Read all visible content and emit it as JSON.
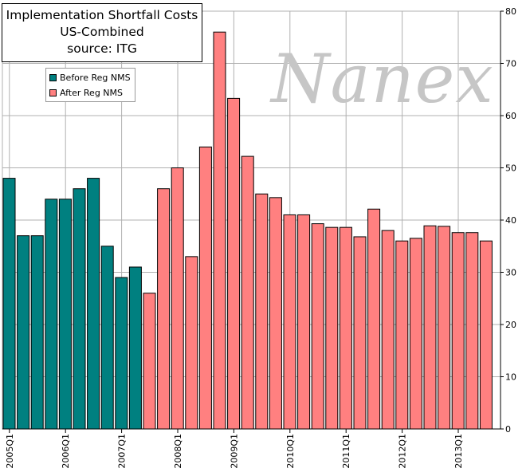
{
  "chart_data": {
    "type": "bar",
    "title": [
      "Implementation Shortfall Costs",
      "US-Combined",
      "source: ITG"
    ],
    "watermark": "Nanex",
    "xlabel": "",
    "ylabel": "",
    "ylim": [
      0,
      80
    ],
    "yticks": [
      0,
      10,
      20,
      30,
      40,
      50,
      60,
      70,
      80
    ],
    "xtick_labels": [
      "2005Q1",
      "2006Q1",
      "2007Q1",
      "2008Q1",
      "2009Q1",
      "2010Q1",
      "2011Q1",
      "2012Q1",
      "2013Q1"
    ],
    "legend": {
      "position": "top-left"
    },
    "grid": true,
    "series": [
      {
        "name": "Before Reg NMS",
        "color": "#008080",
        "x": [
          "2005Q1",
          "2005Q2",
          "2005Q3",
          "2005Q4",
          "2006Q1",
          "2006Q2",
          "2006Q3",
          "2006Q4",
          "2007Q1",
          "2007Q2"
        ],
        "values": [
          48,
          37,
          37,
          44,
          44,
          46,
          48,
          35,
          29,
          31
        ]
      },
      {
        "name": "After Reg NMS",
        "color": "#ff8080",
        "x": [
          "2007Q3",
          "2007Q4",
          "2008Q1",
          "2008Q2",
          "2008Q3",
          "2008Q4",
          "2009Q1",
          "2009Q2",
          "2009Q3",
          "2009Q4",
          "2010Q1",
          "2010Q2",
          "2010Q3",
          "2010Q4",
          "2011Q1",
          "2011Q2",
          "2011Q3",
          "2011Q4",
          "2012Q1",
          "2012Q2",
          "2012Q3",
          "2012Q4",
          "2013Q1",
          "2013Q2",
          "2013Q3"
        ],
        "values": [
          26,
          46,
          50,
          33,
          54,
          76,
          63.3,
          52.2,
          45,
          44.3,
          41,
          41,
          39.3,
          38.6,
          38.6,
          36.8,
          42.1,
          38,
          36,
          36.5,
          38.9,
          38.8,
          37.6,
          37.6,
          36
        ]
      }
    ]
  }
}
